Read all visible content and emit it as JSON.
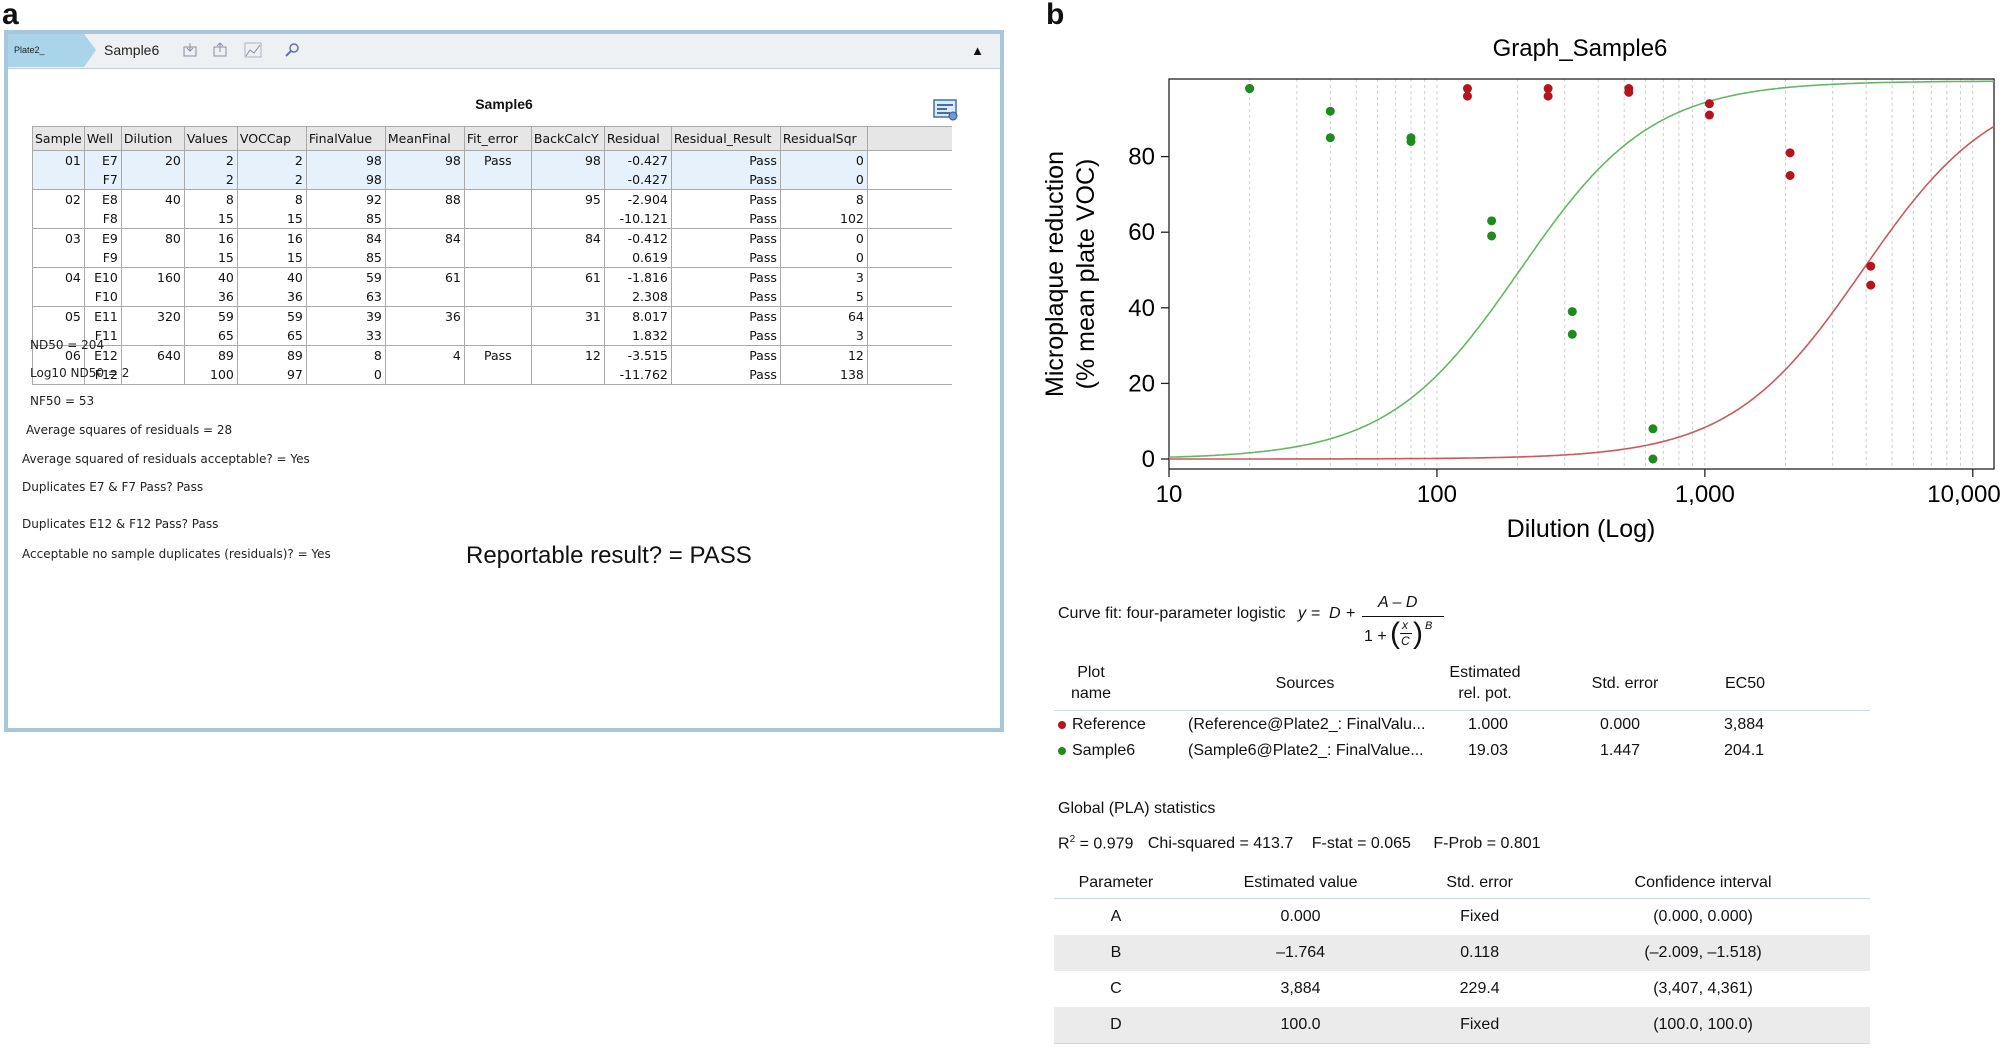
{
  "panel_a": {
    "label": "a",
    "tabs": [
      "Plate2_",
      "Sample6"
    ],
    "grid_title": "Sample6",
    "columns": [
      "Sample",
      "Well",
      "Dilution",
      "Values",
      "VOCCap",
      "FinalValue",
      "MeanFinal",
      "Fit_error",
      "BackCalcY",
      "Residual",
      "Residual_Result",
      "ResidualSqr"
    ],
    "rows": [
      {
        "sample": "01",
        "wells": [
          "E7",
          "F7"
        ],
        "dilution": "20",
        "values": [
          "2",
          "2"
        ],
        "voccap": [
          "2",
          "2"
        ],
        "final": [
          "98",
          "98"
        ],
        "mean": "98",
        "fit_error": "Pass",
        "backcalc": "98",
        "residual": [
          "-0.427",
          "-0.427"
        ],
        "result": [
          "Pass",
          "Pass"
        ],
        "sqr": [
          "0",
          "0"
        ]
      },
      {
        "sample": "02",
        "wells": [
          "E8",
          "F8"
        ],
        "dilution": "40",
        "values": [
          "8",
          "15"
        ],
        "voccap": [
          "8",
          "15"
        ],
        "final": [
          "92",
          "85"
        ],
        "mean": "88",
        "fit_error": "",
        "backcalc": "95",
        "residual": [
          "-2.904",
          "-10.121"
        ],
        "result": [
          "Pass",
          "Pass"
        ],
        "sqr": [
          "8",
          "102"
        ]
      },
      {
        "sample": "03",
        "wells": [
          "E9",
          "F9"
        ],
        "dilution": "80",
        "values": [
          "16",
          "15"
        ],
        "voccap": [
          "16",
          "15"
        ],
        "final": [
          "84",
          "85"
        ],
        "mean": "84",
        "fit_error": "",
        "backcalc": "84",
        "residual": [
          "-0.412",
          "0.619"
        ],
        "result": [
          "Pass",
          "Pass"
        ],
        "sqr": [
          "0",
          "0"
        ]
      },
      {
        "sample": "04",
        "wells": [
          "E10",
          "F10"
        ],
        "dilution": "160",
        "values": [
          "40",
          "36"
        ],
        "voccap": [
          "40",
          "36"
        ],
        "final": [
          "59",
          "63"
        ],
        "mean": "61",
        "fit_error": "",
        "backcalc": "61",
        "residual": [
          "-1.816",
          "2.308"
        ],
        "result": [
          "Pass",
          "Pass"
        ],
        "sqr": [
          "3",
          "5"
        ]
      },
      {
        "sample": "05",
        "wells": [
          "E11",
          "F11"
        ],
        "dilution": "320",
        "values": [
          "59",
          "65"
        ],
        "voccap": [
          "59",
          "65"
        ],
        "final": [
          "39",
          "33"
        ],
        "mean": "36",
        "fit_error": "",
        "backcalc": "31",
        "residual": [
          "8.017",
          "1.832"
        ],
        "result": [
          "Pass",
          "Pass"
        ],
        "sqr": [
          "64",
          "3"
        ]
      },
      {
        "sample": "06",
        "wells": [
          "E12",
          "F12"
        ],
        "dilution": "640",
        "values": [
          "89",
          "100"
        ],
        "voccap": [
          "89",
          "97"
        ],
        "final": [
          "8",
          "0"
        ],
        "mean": "4",
        "fit_error": "Pass",
        "backcalc": "12",
        "residual": [
          "-3.515",
          "-11.762"
        ],
        "result": [
          "Pass",
          "Pass"
        ],
        "sqr": [
          "12",
          "138"
        ]
      }
    ],
    "results": [
      "ND50 =  204",
      "Log10 ND50 =  2",
      "NF50 =  53",
      "Average squares of residuals =  28",
      "Average squared of residuals acceptable? =  Yes",
      "Duplicates E7 & F7 Pass?  Pass",
      "Duplicates E12 & F12 Pass?  Pass",
      "Acceptable no sample duplicates (residuals)? =  Yes"
    ],
    "reportable": "Reportable result? = PASS"
  },
  "panel_b": {
    "label": "b",
    "fit_prefix": "Curve fit: four-parameter logistic",
    "fit_formula": {
      "y": "y",
      "eq": "=",
      "D": "D",
      "plus": "+",
      "num": "A – D",
      "one_plus": "1 +",
      "x": "x",
      "C": "C",
      "B": "B"
    },
    "potency_headers": [
      "Plot\nname",
      "Sources",
      "Estimated\nrel. pot.",
      "Std. error",
      "EC50"
    ],
    "potency_rows": [
      {
        "name": "Reference",
        "source": "(Reference@Plate2_: FinalValu...",
        "pot": "1.000",
        "se": "0.000",
        "ec50": "3,884",
        "color": "#b5141b"
      },
      {
        "name": "Sample6",
        "source": "(Sample6@Plate2_: FinalValue...",
        "pot": "19.03",
        "se": "1.447",
        "ec50": "204.1",
        "color": "#1f8a1f"
      }
    ],
    "global_title": "Global (PLA) statistics",
    "global_stats": {
      "r2_prefix": "R",
      "r2_exp": "2",
      "r2_rest": " = 0.979",
      "chi": "Chi-squared = 413.7",
      "fstat": "F-stat = 0.065",
      "fprob": "F-Prob = 0.801"
    },
    "param_headers": [
      "Parameter",
      "Estimated value",
      "Std. error",
      "Confidence interval"
    ],
    "param_rows": [
      [
        "A",
        "0.000",
        "Fixed",
        "(0.000, 0.000)"
      ],
      [
        "B",
        "–1.764",
        "0.118",
        "(–2.009, –1.518)"
      ],
      [
        "C",
        "3,884",
        "229.4",
        "(3,407, 4,361)"
      ],
      [
        "D",
        "100.0",
        "Fixed",
        "(100.0, 100.0)"
      ]
    ]
  },
  "chart_data": {
    "type": "scatter",
    "title": "Graph_Sample6",
    "xlabel": "Dilution (Log)",
    "ylabel": "Microplaque reduction (% mean plate VOC)",
    "ylabel_lines": [
      "Microplaque reduction",
      "(% mean plate VOC)"
    ],
    "x_scale": "log",
    "xlim": [
      10,
      12000
    ],
    "ylim": [
      0,
      100
    ],
    "x_ticks": [
      10,
      100,
      1000,
      10000
    ],
    "x_tick_labels": [
      "10",
      "100",
      "1,000",
      "10,000"
    ],
    "y_ticks": [
      0,
      20,
      40,
      60,
      80
    ],
    "y_tick_labels": [
      "0",
      "20",
      "40",
      "60",
      "80"
    ],
    "grid": {
      "x_minor": true,
      "y": false
    },
    "series": [
      {
        "name": "Reference",
        "color": "#b5141b",
        "curve_color": "#c9595c",
        "x": [
          130,
          130,
          260,
          260,
          520,
          520,
          1040,
          1040,
          2080,
          2080,
          4160,
          4160
        ],
        "y": [
          98,
          96,
          98,
          96,
          98,
          97,
          94,
          91,
          81,
          75,
          51,
          46
        ],
        "fit": {
          "A": 0,
          "B": -1.764,
          "C": 3884,
          "D": 100
        }
      },
      {
        "name": "Sample6",
        "color": "#1f8a1f",
        "curve_color": "#63b863",
        "x": [
          20,
          20,
          40,
          40,
          80,
          80,
          160,
          160,
          320,
          320,
          640,
          640
        ],
        "y": [
          98,
          98,
          92,
          85,
          85,
          84,
          63,
          59,
          39,
          33,
          8,
          0
        ],
        "fit": {
          "A": 0,
          "B": -1.764,
          "C": 204.1,
          "D": 100
        }
      }
    ]
  }
}
